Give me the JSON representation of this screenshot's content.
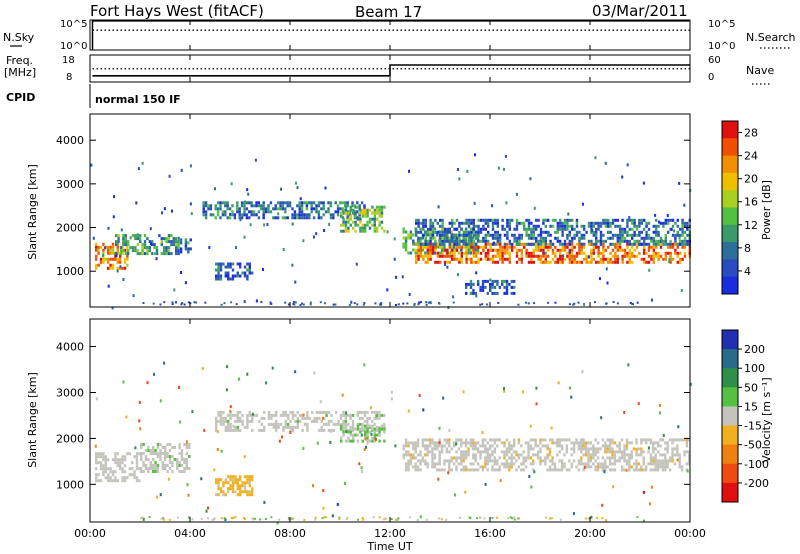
{
  "header": {
    "station": "Fort Hays West (fitACF)",
    "beam": "Beam 17",
    "date": "03/Mar/2011"
  },
  "noise_panel": {
    "left_label": "N.Sky",
    "right_label": "N.Search",
    "left_ticks": [
      "10^5",
      "10^0"
    ],
    "right_ticks": [
      "10^5",
      "10^0"
    ]
  },
  "freq_panel": {
    "left_label_1": "Freq.",
    "left_label_2": "[MHz]",
    "right_label": "Nave",
    "left_ticks": [
      "18",
      "8"
    ],
    "right_ticks": [
      "60",
      "0"
    ]
  },
  "cpid_panel": {
    "label": "CPID",
    "program": "normal 150 IF"
  },
  "x_axis": {
    "label": "Time UT",
    "ticks": [
      "00:00",
      "04:00",
      "08:00",
      "12:00",
      "16:00",
      "20:00",
      "00:00"
    ]
  },
  "range_axis": {
    "label": "Slant Range [km]",
    "ticks": [
      "1000",
      "2000",
      "3000",
      "4000"
    ]
  },
  "power_bar": {
    "label": "Power [dB]",
    "ticks": [
      "4",
      "8",
      "12",
      "16",
      "20",
      "24",
      "28"
    ],
    "colors": [
      "#1a2be0",
      "#2a4bc0",
      "#2c6f9a",
      "#3a9a6a",
      "#52c040",
      "#a8d020",
      "#f0c000",
      "#f09000",
      "#f05000",
      "#e01010"
    ]
  },
  "velocity_bar": {
    "label": "Velocity [m s⁻¹]",
    "ticks": [
      "200",
      "100",
      "50",
      "15",
      "-15",
      "-50",
      "-100",
      "-200"
    ],
    "colors": [
      "#2030b0",
      "#2a6a8a",
      "#2e8f4a",
      "#56c040",
      "#c4c4bc",
      "#f0b020",
      "#f08010",
      "#f04a10",
      "#e01010"
    ]
  },
  "chart_data": [
    {
      "type": "line",
      "title": "",
      "xlabel": "",
      "ylabel": "N.Sky",
      "x_range_hours": [
        0,
        24
      ],
      "scale": "log",
      "ylim": [
        1,
        100000
      ],
      "series": [
        {
          "style": "solid",
          "note": "",
          "x": [
            0.1,
            24
          ],
          "y": [
            80000,
            80000
          ]
        },
        {
          "style": "dotted",
          "x": [
            0.1,
            24
          ],
          "y": [
            2000,
            2000
          ]
        }
      ]
    },
    {
      "type": "line",
      "title": "",
      "xlabel": "",
      "ylabel": "Freq. [MHz]",
      "x_range_hours": [
        0,
        24
      ],
      "ylim": [
        8,
        18
      ],
      "series": [
        {
          "style": "solid",
          "x": [
            0.1,
            12.0,
            12.0,
            24
          ],
          "y": [
            10.3,
            10.3,
            14.3,
            14.3
          ]
        },
        {
          "style": "dotted",
          "x": [
            0.1,
            24
          ],
          "y": [
            12.9,
            12.9
          ]
        }
      ]
    },
    {
      "type": "heatmap",
      "title": "",
      "xlabel": "Time UT",
      "ylabel": "Slant Range [km]",
      "quantity": "Power [dB]",
      "x_range_hours": [
        0,
        24
      ],
      "ylim_km": [
        180,
        4600
      ],
      "clim": [
        0,
        30
      ],
      "regions": [
        {
          "t": [
            0.2,
            1.5
          ],
          "range_km": [
            1050,
            1650
          ],
          "power_db": 22
        },
        {
          "t": [
            1.0,
            3.5
          ],
          "range_km": [
            1400,
            1850
          ],
          "power_db": 10
        },
        {
          "t": [
            3.5,
            4.0
          ],
          "range_km": [
            1450,
            1750
          ],
          "power_db": 8
        },
        {
          "t": [
            4.5,
            11.0
          ],
          "range_km": [
            2200,
            2600
          ],
          "power_db": 7
        },
        {
          "t": [
            10.0,
            11.8
          ],
          "range_km": [
            1950,
            2500
          ],
          "power_db": 14
        },
        {
          "t": [
            5.0,
            6.5
          ],
          "range_km": [
            800,
            1200
          ],
          "power_db": 6
        },
        {
          "t": [
            12.5,
            15.5
          ],
          "range_km": [
            1400,
            2000
          ],
          "power_db": 11
        },
        {
          "t": [
            13.0,
            24.0
          ],
          "range_km": [
            1200,
            1650
          ],
          "power_db": 24
        },
        {
          "t": [
            13.0,
            24.0
          ],
          "range_km": [
            1650,
            2200
          ],
          "power_db": 7
        },
        {
          "t": [
            15.0,
            17.0
          ],
          "range_km": [
            500,
            800
          ],
          "power_db": 5
        }
      ]
    },
    {
      "type": "heatmap",
      "title": "",
      "xlabel": "Time UT",
      "ylabel": "Slant Range [km]",
      "quantity": "Velocity [m s-1]",
      "x_range_hours": [
        0,
        24
      ],
      "ylim_km": [
        180,
        4600
      ],
      "clim": [
        -250,
        250
      ],
      "regions": [
        {
          "t": [
            0.2,
            2.0
          ],
          "range_km": [
            1100,
            1700
          ],
          "velocity": 0
        },
        {
          "t": [
            2.0,
            4.0
          ],
          "range_km": [
            1300,
            1900
          ],
          "velocity": 10
        },
        {
          "t": [
            5.0,
            11.8
          ],
          "range_km": [
            2150,
            2600
          ],
          "velocity": 5
        },
        {
          "t": [
            10.0,
            11.8
          ],
          "range_km": [
            1950,
            2300
          ],
          "velocity": 30
        },
        {
          "t": [
            5.0,
            6.5
          ],
          "range_km": [
            800,
            1200
          ],
          "velocity": -40
        },
        {
          "t": [
            12.5,
            24.0
          ],
          "range_km": [
            1300,
            2000
          ],
          "velocity": -5
        }
      ]
    }
  ]
}
